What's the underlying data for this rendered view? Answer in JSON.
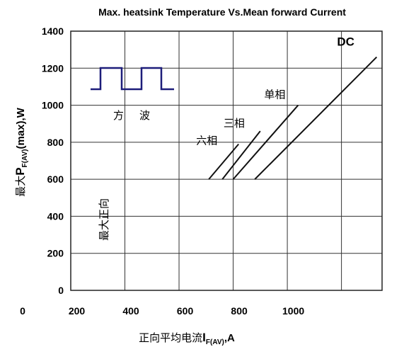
{
  "chart_data": {
    "type": "line",
    "title": "Max. heatsink Temperature Vs.Mean forward Current",
    "xlabel": "正向平均电流",
    "xlabel_symbol": "I",
    "xlabel_sub": "F(AV)",
    "xlabel_unit": ",A",
    "ylabel_prefix": "最大",
    "ylabel_symbol": "P",
    "ylabel_sub": "F(AV)",
    "ylabel_rest": "(max),W",
    "ylabel_secondary": "最大正向",
    "x_ticks": [
      0,
      200,
      400,
      600,
      800,
      1000
    ],
    "y_ticks": [
      0,
      200,
      400,
      600,
      800,
      1000,
      1200,
      1400
    ],
    "xlim": [
      0,
      1150
    ],
    "ylim": [
      0,
      1400
    ],
    "grid": true,
    "inset_label": "方波",
    "series": [
      {
        "name": "六相",
        "x": [
          510,
          620
        ],
        "y": [
          600,
          790
        ]
      },
      {
        "name": "三相",
        "x": [
          560,
          700
        ],
        "y": [
          600,
          860
        ]
      },
      {
        "name": "单相",
        "x": [
          600,
          840
        ],
        "y": [
          600,
          1000
        ]
      },
      {
        "name": "DC",
        "x": [
          680,
          1130
        ],
        "y": [
          600,
          1260
        ]
      }
    ]
  }
}
